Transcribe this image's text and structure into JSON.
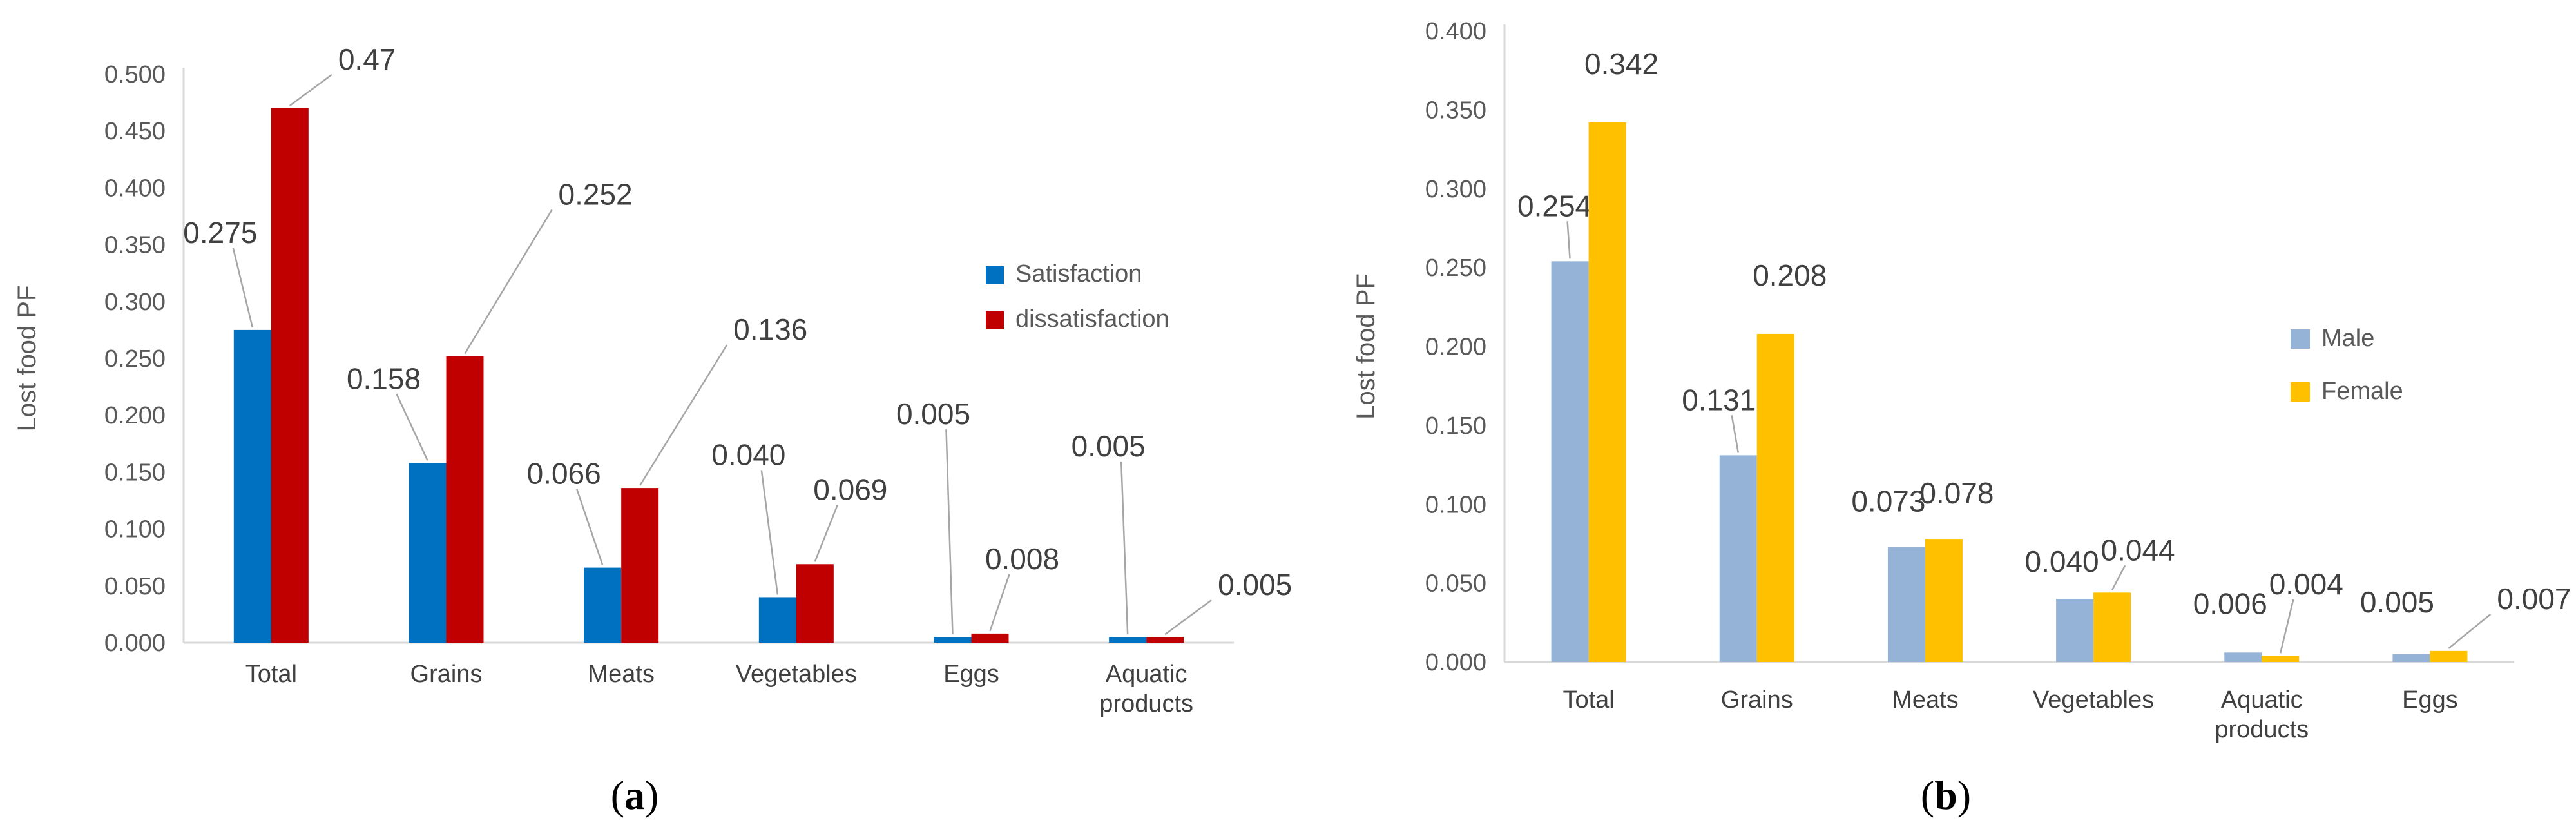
{
  "chart_data": [
    {
      "type": "bar",
      "caption_letter": "a",
      "caption_open": "(",
      "caption_close": ")",
      "ylabel": "Lost food PF",
      "xlabel": "",
      "ylim": [
        0,
        0.5
      ],
      "yticks": [
        "0.000",
        "0.050",
        "0.100",
        "0.150",
        "0.200",
        "0.250",
        "0.300",
        "0.350",
        "0.400",
        "0.450",
        "0.500"
      ],
      "categories": [
        [
          "Total"
        ],
        [
          "Grains"
        ],
        [
          "Meats"
        ],
        [
          "Vegetables"
        ],
        [
          "Eggs"
        ],
        [
          "Aquatic",
          "products"
        ]
      ],
      "legend_position": "right",
      "series": [
        {
          "name": "Satisfaction",
          "color": "#0070C0",
          "values": [
            0.275,
            0.158,
            0.066,
            0.04,
            0.005,
            0.005
          ],
          "labels": [
            "0.275",
            "0.158",
            "0.066",
            "0.040",
            "0.005",
            "0.005"
          ]
        },
        {
          "name": "dissatisfaction",
          "color": "#C00000",
          "values": [
            0.47,
            0.252,
            0.136,
            0.069,
            0.008,
            0.005
          ],
          "labels": [
            "0.47",
            "0.252",
            "0.136",
            "0.069",
            "0.008",
            "0.005"
          ]
        }
      ]
    },
    {
      "type": "bar",
      "caption_letter": "b",
      "caption_open": "(",
      "caption_close": ")",
      "ylabel": "Lost food PF",
      "xlabel": "",
      "ylim": [
        0,
        0.4
      ],
      "yticks": [
        "0.000",
        "0.050",
        "0.100",
        "0.150",
        "0.200",
        "0.250",
        "0.300",
        "0.350",
        "0.400"
      ],
      "categories": [
        [
          "Total"
        ],
        [
          "Grains"
        ],
        [
          "Meats"
        ],
        [
          "Vegetables"
        ],
        [
          "Aquatic",
          "products"
        ],
        [
          "Eggs"
        ]
      ],
      "legend_position": "right",
      "series": [
        {
          "name": "Male",
          "color": "#95B3D7",
          "values": [
            0.254,
            0.131,
            0.073,
            0.04,
            0.006,
            0.005
          ],
          "labels": [
            "0.254",
            "0.131",
            "0.073",
            "0.040",
            "0.006",
            "0.005"
          ]
        },
        {
          "name": "Female",
          "color": "#FFC000",
          "values": [
            0.342,
            0.208,
            0.078,
            0.044,
            0.004,
            0.007
          ],
          "labels": [
            "0.342",
            "0.208",
            "0.078",
            "0.044",
            "0.004",
            "0.007"
          ]
        }
      ]
    }
  ]
}
